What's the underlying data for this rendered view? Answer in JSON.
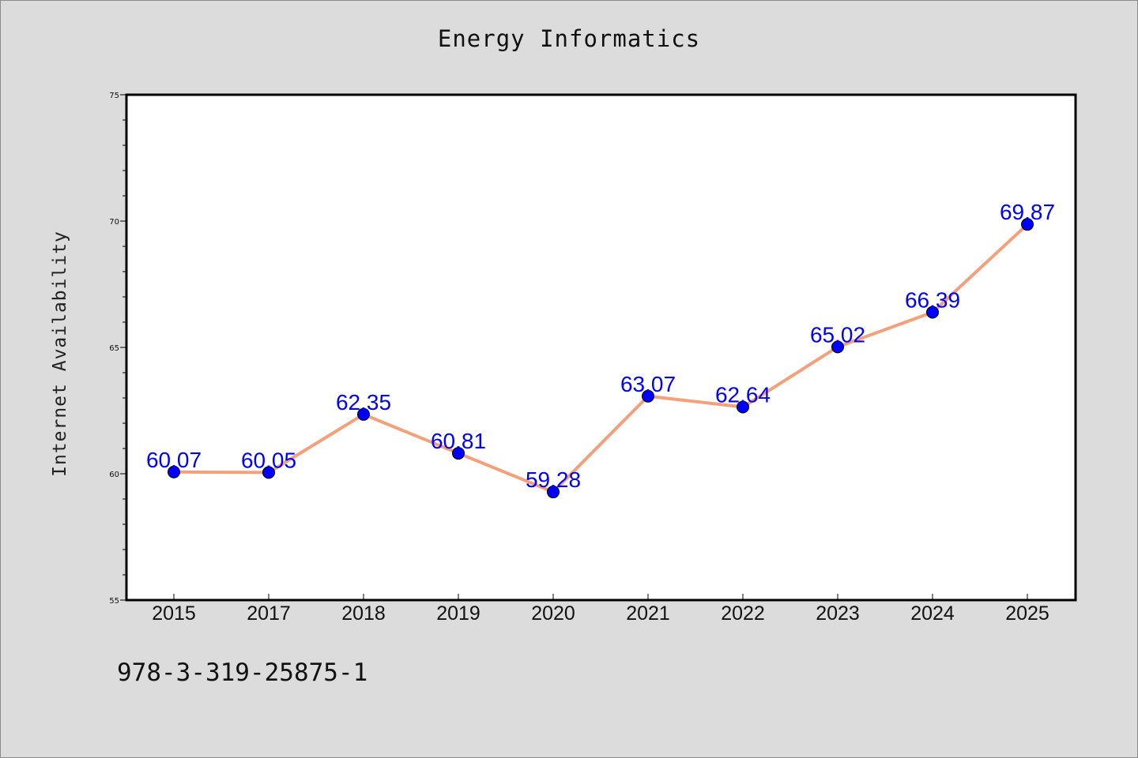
{
  "chart_data": {
    "type": "line",
    "title": "Energy Informatics",
    "xlabel": "",
    "ylabel": "Internet Availability",
    "categories": [
      "2015",
      "2017",
      "2018",
      "2019",
      "2020",
      "2021",
      "2022",
      "2023",
      "2024",
      "2025"
    ],
    "series": [
      {
        "values": [
          60.07,
          60.05,
          62.35,
          60.81,
          59.28,
          63.07,
          62.64,
          65.02,
          66.39,
          69.87
        ],
        "line_color": "#f4a07a",
        "marker_color": "#0000ff"
      }
    ],
    "data_labels": [
      "60.07",
      "60.05",
      "62.35",
      "60.81",
      "59.28",
      "63.07",
      "62.64",
      "65.02",
      "66.39",
      "69.87"
    ],
    "ylim": [
      55,
      75
    ],
    "yticks": [
      "55",
      "60",
      "65",
      "70",
      "75"
    ],
    "grid": false,
    "legend": "none"
  },
  "footer": {
    "code": "978-3-319-25875-1"
  },
  "colors": {
    "background": "#dcdcdc",
    "plot_background": "#ffffff",
    "label_color": "#0000ff"
  }
}
